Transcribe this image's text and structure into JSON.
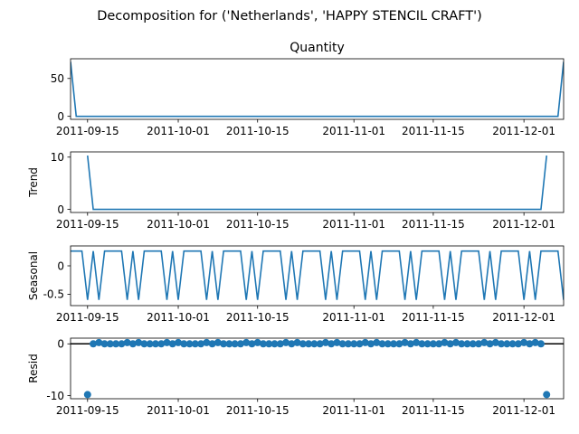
{
  "suptitle": "Decomposition for ('Netherlands', 'HAPPY STENCIL CRAFT')",
  "colors": {
    "series": "#1f77b4",
    "axis": "#000000",
    "background": "#ffffff"
  },
  "chart_data": [
    {
      "type": "line",
      "panel": "observed",
      "title": "Quantity",
      "ylabel": "",
      "xlim": [
        "2011-09-12",
        "2011-12-08"
      ],
      "ylim": [
        -4,
        76
      ],
      "yticks": [
        0,
        50
      ],
      "xticks": [
        "2011-09-15",
        "2011-10-01",
        "2011-10-15",
        "2011-11-01",
        "2011-11-15",
        "2011-12-01"
      ],
      "x": [
        "2011-09-12",
        "2011-09-13",
        "2011-12-07",
        "2011-12-08"
      ],
      "y": [
        72,
        0,
        0,
        72
      ]
    },
    {
      "type": "line",
      "panel": "trend",
      "title": "",
      "ylabel": "Trend",
      "xlim": [
        "2011-09-12",
        "2011-12-08"
      ],
      "ylim": [
        -0.6,
        11
      ],
      "yticks": [
        0,
        10
      ],
      "xticks": [
        "2011-09-15",
        "2011-10-01",
        "2011-10-15",
        "2011-11-01",
        "2011-11-15",
        "2011-12-01"
      ],
      "x": [
        "2011-09-15",
        "2011-09-16",
        "2011-12-04",
        "2011-12-05"
      ],
      "y": [
        10.3,
        0,
        0,
        10.3
      ]
    },
    {
      "type": "line",
      "panel": "seasonal",
      "title": "",
      "ylabel": "Seasonal",
      "xlim": [
        "2011-09-12",
        "2011-12-08"
      ],
      "ylim": [
        -0.7,
        0.35
      ],
      "yticks": [
        0.0,
        -0.5
      ],
      "xticks": [
        "2011-09-15",
        "2011-10-01",
        "2011-10-15",
        "2011-11-01",
        "2011-11-15",
        "2011-12-01"
      ],
      "period": 7,
      "pattern_start": "2011-09-12",
      "pattern": [
        0.26,
        0.26,
        0.26,
        -0.6,
        0.26,
        -0.6,
        0.26
      ]
    },
    {
      "type": "scatter",
      "panel": "resid",
      "title": "",
      "ylabel": "Resid",
      "xlim": [
        "2011-09-12",
        "2011-12-08"
      ],
      "ylim": [
        -10.6,
        1.1
      ],
      "yticks": [
        0,
        -10
      ],
      "xticks": [
        "2011-09-15",
        "2011-10-01",
        "2011-10-15",
        "2011-11-01",
        "2011-11-15",
        "2011-12-01"
      ],
      "baseline": 0,
      "outliers": [
        {
          "x": "2011-09-15",
          "y": -9.8
        },
        {
          "x": "2011-12-05",
          "y": -9.8
        }
      ],
      "near_zero_range": [
        "2011-09-16",
        "2011-12-04"
      ],
      "near_zero_values": [
        0.0,
        0.25,
        0.0,
        0.0,
        0.0,
        0.0,
        0.25
      ]
    }
  ]
}
